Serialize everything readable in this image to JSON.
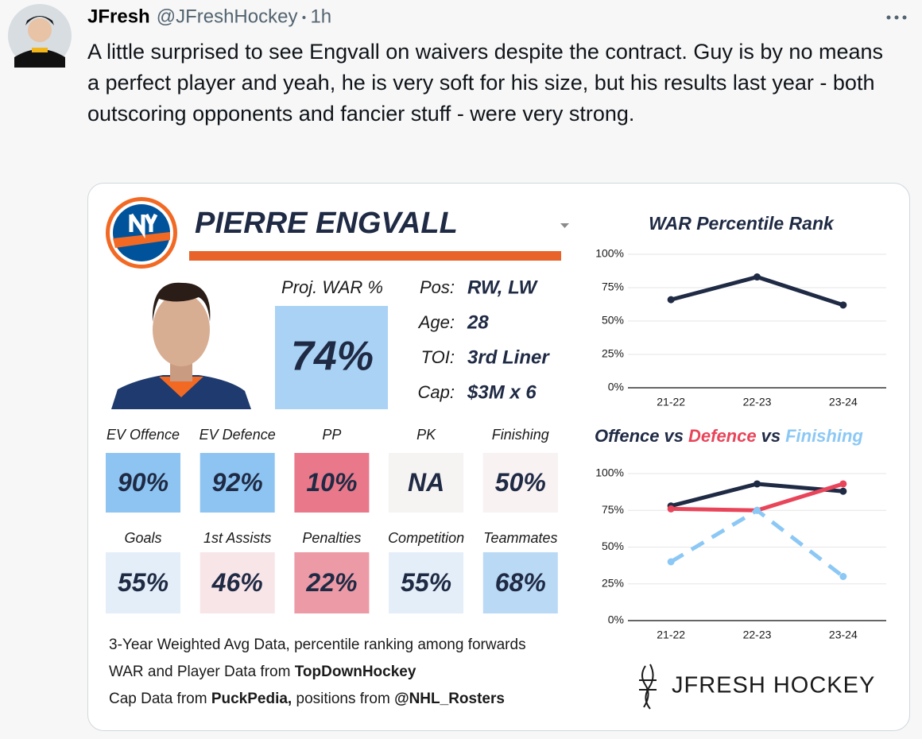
{
  "tweet": {
    "author": "JFresh",
    "handle": "@JFreshHockey",
    "time": "1h",
    "text": "A little surprised to see Engvall on waivers despite the contract. Guy is by no means a perfect player and yeah, he is very soft for his size, but his results last year - both outscoring opponents and fancier stuff - were very strong."
  },
  "card": {
    "player": "PIERRE ENGVALL",
    "proj": {
      "label": "Proj. WAR %",
      "value": "74%",
      "color": "#a9d2f5"
    },
    "info": [
      {
        "label": "Pos:",
        "value": "RW, LW"
      },
      {
        "label": "Age:",
        "value": "28"
      },
      {
        "label": "TOI:",
        "value": "3rd Liner"
      },
      {
        "label": "Cap:",
        "value": "$3M x 6"
      }
    ],
    "stats": [
      {
        "label": "EV Offence",
        "value": "90%",
        "color": "#8ec4f2"
      },
      {
        "label": "EV Defence",
        "value": "92%",
        "color": "#8ec4f2"
      },
      {
        "label": "PP",
        "value": "10%",
        "color": "#e8788a"
      },
      {
        "label": "PK",
        "value": "NA",
        "color": "#f6f3f3"
      },
      {
        "label": "Finishing",
        "value": "50%",
        "color": "#f8f2f2"
      },
      {
        "label": "Goals",
        "value": "55%",
        "color": "#e4eef8"
      },
      {
        "label": "1st Assists",
        "value": "46%",
        "color": "#f8e5e8"
      },
      {
        "label": "Penalties",
        "value": "22%",
        "color": "#ec9aa6"
      },
      {
        "label": "Competition",
        "value": "55%",
        "color": "#e4eef8"
      },
      {
        "label": "Teammates",
        "value": "68%",
        "color": "#b9d9f5"
      }
    ],
    "footer": [
      [
        {
          "text": "3-Year Weighted Avg Data, percentile ranking among forwards",
          "bold": false
        }
      ],
      [
        {
          "text": "WAR and Player Data from",
          "bold": false
        },
        {
          "text": "TopDownHockey",
          "bold": true
        }
      ],
      [
        {
          "text": "Cap Data from",
          "bold": false
        },
        {
          "text": "PuckPedia,",
          "bold": true
        },
        {
          "text": "positions from",
          "bold": false
        },
        {
          "text": "@NHL_Rosters",
          "bold": true
        }
      ]
    ],
    "brand": "JFRESH HOCKEY"
  },
  "chart_data": [
    {
      "type": "line",
      "title": "WAR Percentile Rank",
      "categories": [
        "21-22",
        "22-23",
        "23-24"
      ],
      "series": [
        {
          "name": "WAR",
          "color": "#1f2a44",
          "dashed": false,
          "values": [
            66,
            83,
            62
          ]
        }
      ],
      "ylim": [
        0,
        100
      ],
      "yticks": [
        {
          "value": 0,
          "label": "0%"
        },
        {
          "value": 25,
          "label": "25%"
        },
        {
          "value": 50,
          "label": "50%"
        },
        {
          "value": 75,
          "label": "75%"
        },
        {
          "value": 100,
          "label": "100%"
        }
      ],
      "grid": true
    },
    {
      "type": "line",
      "title_joiner": "vs",
      "categories": [
        "21-22",
        "22-23",
        "23-24"
      ],
      "series": [
        {
          "name": "Offence",
          "color": "#1f2a44",
          "dashed": false,
          "values": [
            78,
            93,
            88
          ]
        },
        {
          "name": "Defence",
          "color": "#e8455a",
          "dashed": false,
          "values": [
            76,
            75,
            93
          ]
        },
        {
          "name": "Finishing",
          "color": "#8cc8f5",
          "dashed": true,
          "values": [
            40,
            75,
            30
          ]
        }
      ],
      "ylim": [
        0,
        100
      ],
      "yticks": [
        {
          "value": 0,
          "label": "0%"
        },
        {
          "value": 25,
          "label": "25%"
        },
        {
          "value": 50,
          "label": "50%"
        },
        {
          "value": 75,
          "label": "75%"
        },
        {
          "value": 100,
          "label": "100%"
        }
      ],
      "grid": true
    }
  ]
}
